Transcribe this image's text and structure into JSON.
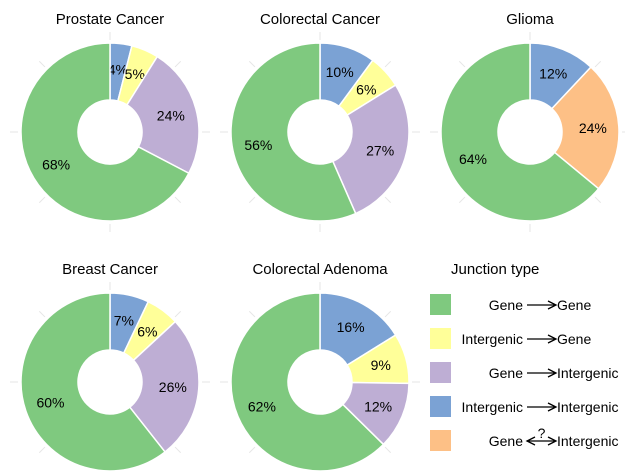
{
  "legend": {
    "title": "Junction type",
    "entries": [
      {
        "key": "gene_gene",
        "from": "Gene",
        "to": "Gene",
        "over": "",
        "color": "#7fc97f"
      },
      {
        "key": "intergenic_gene",
        "from": "Intergenic",
        "to": "Gene",
        "over": "",
        "color": "#ffff99"
      },
      {
        "key": "gene_intergenic",
        "from": "Gene",
        "to": "Intergenic",
        "over": "",
        "color": "#beaed4"
      },
      {
        "key": "intergenic_intergenic",
        "from": "Intergenic",
        "to": "Intergenic",
        "over": "",
        "color": "#7ba2d4"
      },
      {
        "key": "gene_unknown_intergenic",
        "from": "Gene",
        "to": "Intergenic",
        "over": "?",
        "color": "#fdc086"
      }
    ]
  },
  "chart_data": [
    {
      "type": "pie",
      "title": "Prostate Cancer",
      "categories": [
        "Intergenic → Intergenic",
        "Intergenic → Gene",
        "Gene → Intergenic",
        "Gene → Gene"
      ],
      "colors": [
        "#7ba2d4",
        "#ffff99",
        "#beaed4",
        "#7fc97f"
      ],
      "values": [
        4,
        5,
        24,
        68
      ],
      "labels": [
        "4%",
        "5%",
        "24%",
        "68%"
      ]
    },
    {
      "type": "pie",
      "title": "Colorectal Cancer",
      "categories": [
        "Intergenic → Intergenic",
        "Intergenic → Gene",
        "Gene → Intergenic",
        "Gene → Gene"
      ],
      "colors": [
        "#7ba2d4",
        "#ffff99",
        "#beaed4",
        "#7fc97f"
      ],
      "values": [
        10,
        6,
        27,
        56
      ],
      "labels": [
        "10%",
        "6%",
        "27%",
        "56%"
      ]
    },
    {
      "type": "pie",
      "title": "Glioma",
      "categories": [
        "Intergenic → Intergenic",
        "Gene ?→ Intergenic",
        "Gene → Gene"
      ],
      "colors": [
        "#7ba2d4",
        "#fdc086",
        "#7fc97f"
      ],
      "values": [
        12,
        24,
        64
      ],
      "labels": [
        "12%",
        "24%",
        "64%"
      ]
    },
    {
      "type": "pie",
      "title": "Breast Cancer",
      "categories": [
        "Intergenic → Intergenic",
        "Intergenic → Gene",
        "Gene → Intergenic",
        "Gene → Gene"
      ],
      "colors": [
        "#7ba2d4",
        "#ffff99",
        "#beaed4",
        "#7fc97f"
      ],
      "values": [
        7,
        6,
        26,
        60
      ],
      "labels": [
        "7%",
        "6%",
        "26%",
        "60%"
      ]
    },
    {
      "type": "pie",
      "title": "Colorectal Adenoma",
      "categories": [
        "Intergenic → Intergenic",
        "Intergenic → Gene",
        "Gene → Intergenic",
        "Gene → Gene"
      ],
      "colors": [
        "#7ba2d4",
        "#ffff99",
        "#beaed4",
        "#7fc97f"
      ],
      "values": [
        16,
        9,
        12,
        62
      ],
      "labels": [
        "16%",
        "9%",
        "12%",
        "62%"
      ]
    }
  ]
}
